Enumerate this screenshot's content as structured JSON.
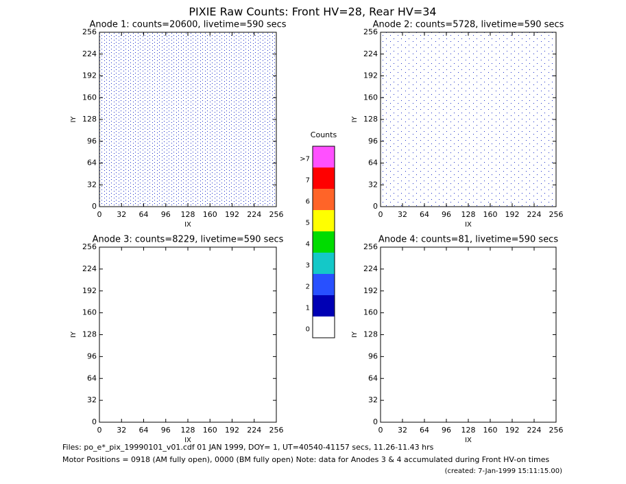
{
  "title": "PIXIE Raw Counts:  Front HV=28, Rear HV=34",
  "chart_data": [
    {
      "type": "heatmap",
      "title": "Anode 1: counts=20600, livetime=590 secs",
      "x_label": "IX",
      "y_label": "IY",
      "xlim": [
        0,
        256
      ],
      "ylim": [
        0,
        256
      ],
      "xticks": [
        0,
        32,
        64,
        96,
        128,
        160,
        192,
        224,
        256
      ],
      "yticks": [
        0,
        32,
        64,
        96,
        128,
        160,
        192,
        224,
        256
      ]
    },
    {
      "type": "heatmap",
      "title": "Anode 2: counts=5728, livetime=590 secs",
      "x_label": "IX",
      "y_label": "IY",
      "xlim": [
        0,
        256
      ],
      "ylim": [
        0,
        256
      ],
      "xticks": [
        0,
        32,
        64,
        96,
        128,
        160,
        192,
        224,
        256
      ],
      "yticks": [
        0,
        32,
        64,
        96,
        128,
        160,
        192,
        224,
        256
      ]
    },
    {
      "type": "heatmap",
      "title": "Anode 3: counts=8229, livetime=590 secs",
      "x_label": "IX",
      "y_label": "IY",
      "xlim": [
        0,
        256
      ],
      "ylim": [
        0,
        256
      ],
      "xticks": [
        0,
        32,
        64,
        96,
        128,
        160,
        192,
        224,
        256
      ],
      "yticks": [
        0,
        32,
        64,
        96,
        128,
        160,
        192,
        224,
        256
      ]
    },
    {
      "type": "heatmap",
      "title": "Anode 4: counts=81, livetime=590 secs",
      "x_label": "IX",
      "y_label": "IY",
      "xlim": [
        0,
        256
      ],
      "ylim": [
        0,
        256
      ],
      "xticks": [
        0,
        32,
        64,
        96,
        128,
        160,
        192,
        224,
        256
      ],
      "yticks": [
        0,
        32,
        64,
        96,
        128,
        160,
        192,
        224,
        256
      ]
    }
  ],
  "colorbar": {
    "title": "Counts",
    "labels": [
      "0",
      "1",
      "2",
      "3",
      "4",
      "5",
      "6",
      "7",
      ">7"
    ],
    "colors": [
      "#ffffff",
      "#0000b4",
      "#2850ff",
      "#14c8c8",
      "#00dc00",
      "#ffff00",
      "#ff6428",
      "#ff0000",
      "#ff50ff"
    ]
  },
  "footer": {
    "files": "Files: po_e*_pix_19990101_v01.cdf   01 JAN 1999, DOY=  1, UT=40540-41157 secs, 11.26-11.43 hrs",
    "motor": "Motor Positions = 0918 (AM fully open), 0000 (BM fully open)    Note: data for Anodes 3 & 4 accumulated during Front HV-on times",
    "created": "(created:  7-Jan-1999 15:11:15.00)"
  }
}
